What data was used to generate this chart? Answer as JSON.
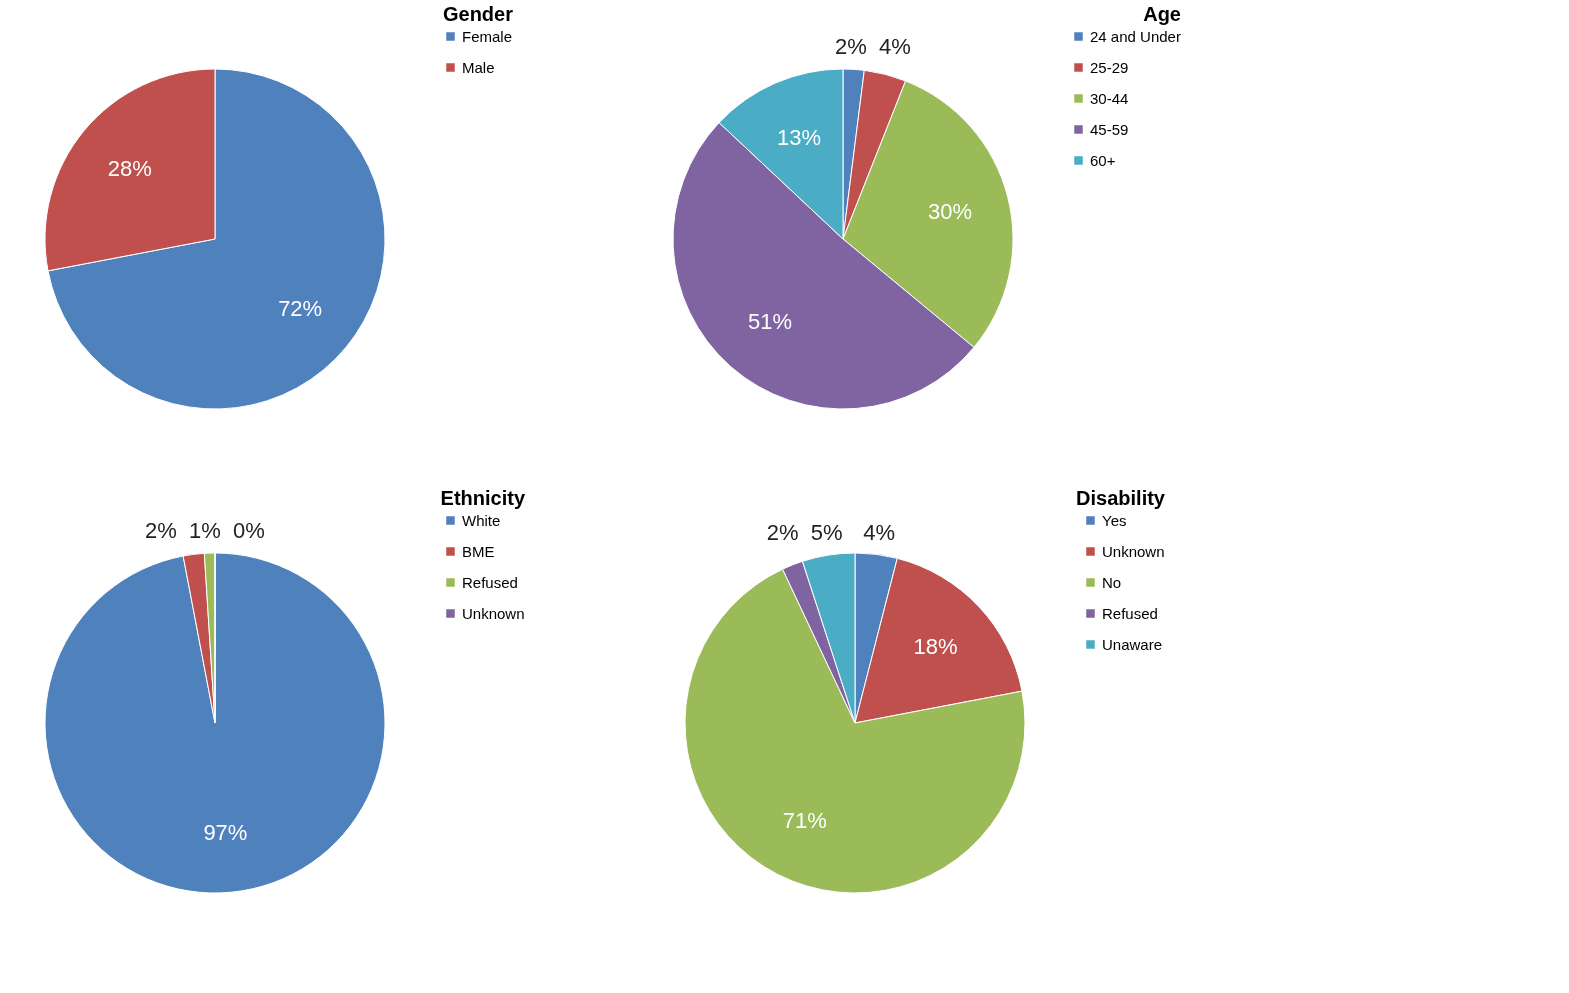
{
  "chart_data": [
    {
      "type": "pie",
      "title": "Gender",
      "categories": [
        "Female",
        "Male"
      ],
      "values": [
        72,
        28
      ],
      "colors": [
        "#4f81bd",
        "#c0504d"
      ],
      "value_labels": [
        "72%",
        "28%"
      ],
      "legend": "right"
    },
    {
      "type": "pie",
      "title": "Age",
      "categories": [
        "24 and Under",
        "25-29",
        "30-44",
        "45-59",
        "60+"
      ],
      "values": [
        2,
        4,
        30,
        51,
        13
      ],
      "colors": [
        "#4f81bd",
        "#c0504d",
        "#9bbb59",
        "#8064a2",
        "#4bacc6"
      ],
      "value_labels": [
        "2%",
        "4%",
        "30%",
        "51%",
        "13%"
      ],
      "legend": "right"
    },
    {
      "type": "pie",
      "title": "Ethnicity",
      "categories": [
        "White",
        "BME",
        "Refused",
        "Unknown"
      ],
      "values": [
        97,
        2,
        1,
        0
      ],
      "colors": [
        "#4f81bd",
        "#c0504d",
        "#9bbb59",
        "#8064a2"
      ],
      "value_labels": [
        "97%",
        "2%",
        "1%",
        "0%"
      ],
      "legend": "right"
    },
    {
      "type": "pie",
      "title": "Disability",
      "categories": [
        "Yes",
        "Unknown",
        "No",
        "Refused",
        "Unaware"
      ],
      "values": [
        4,
        18,
        71,
        2,
        5
      ],
      "colors": [
        "#4f81bd",
        "#c0504d",
        "#9bbb59",
        "#8064a2",
        "#4bacc6"
      ],
      "value_labels": [
        "4%",
        "18%",
        "71%",
        "2%",
        "5%"
      ],
      "legend": "right"
    }
  ]
}
